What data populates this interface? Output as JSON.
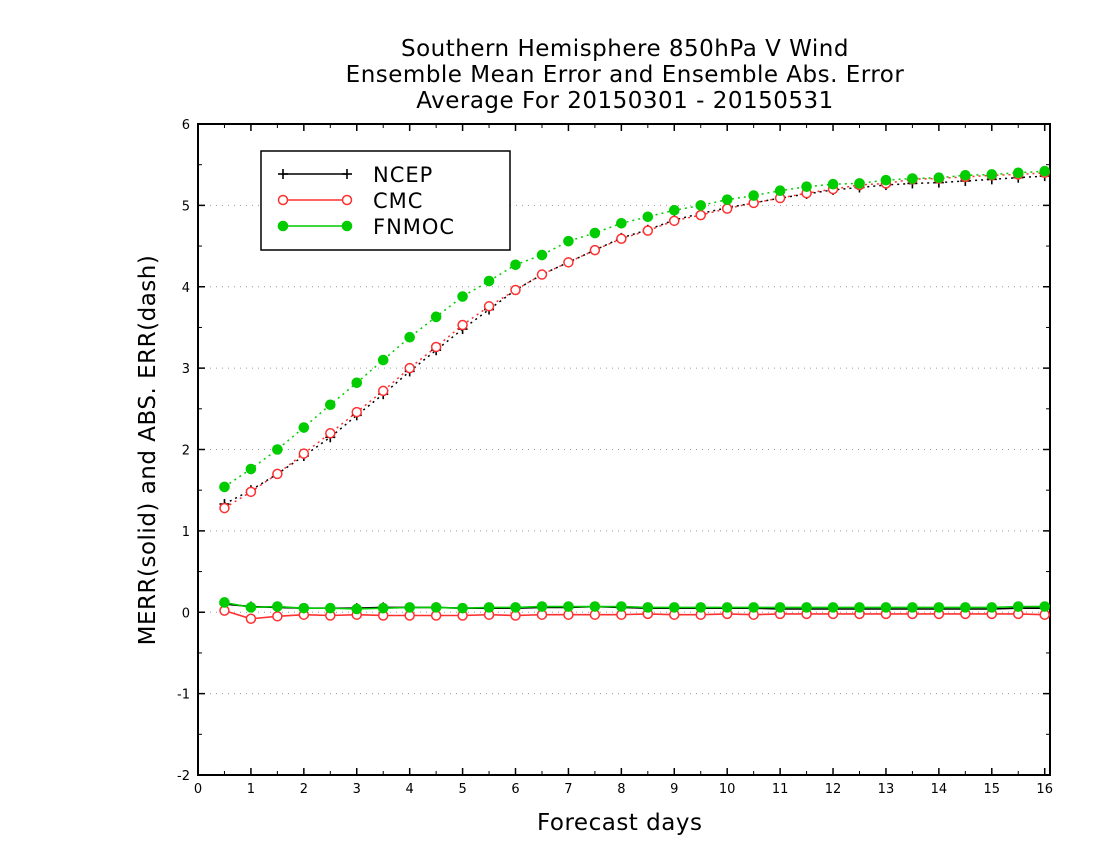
{
  "chart_data": {
    "type": "line",
    "title_lines": [
      "Southern Hemisphere 850hPa V Wind",
      "Ensemble Mean Error and Ensemble Abs. Error",
      "Average For 20150301 - 20150531"
    ],
    "xlabel": "Forecast days",
    "ylabel": "MERR(solid) and ABS. ERR(dash)",
    "xlim": [
      0,
      16.1
    ],
    "ylim": [
      -2,
      6
    ],
    "x_ticks": [
      0,
      1,
      2,
      3,
      4,
      5,
      6,
      7,
      8,
      9,
      10,
      11,
      12,
      13,
      14,
      15,
      16
    ],
    "y_ticks": [
      -2,
      -1,
      0,
      1,
      2,
      3,
      4,
      5,
      6
    ],
    "y_tick_labels": [
      "-2",
      "-1",
      "0",
      "1",
      "2",
      "3",
      "4",
      "5",
      "6"
    ],
    "grid": "horizontal dotted",
    "legend_position": "top-left",
    "x": [
      0.5,
      1,
      1.5,
      2,
      2.5,
      3,
      3.5,
      4,
      4.5,
      5,
      5.5,
      6,
      6.5,
      7,
      7.5,
      8,
      8.5,
      9,
      9.5,
      10,
      10.5,
      11,
      11.5,
      12,
      12.5,
      13,
      13.5,
      14,
      14.5,
      15,
      15.5,
      16
    ],
    "series": [
      {
        "name": "NCEP",
        "color": "#000000",
        "marker": "plus",
        "merr": [
          0.1,
          0.07,
          0.06,
          0.05,
          0.05,
          0.05,
          0.06,
          0.06,
          0.06,
          0.05,
          0.05,
          0.05,
          0.06,
          0.06,
          0.07,
          0.06,
          0.05,
          0.05,
          0.05,
          0.05,
          0.05,
          0.04,
          0.04,
          0.04,
          0.04,
          0.04,
          0.04,
          0.04,
          0.04,
          0.04,
          0.05,
          0.05
        ],
        "abs_err": [
          1.33,
          1.5,
          1.7,
          1.92,
          2.15,
          2.42,
          2.68,
          2.96,
          3.22,
          3.48,
          3.72,
          3.96,
          4.15,
          4.3,
          4.45,
          4.6,
          4.7,
          4.82,
          4.9,
          4.97,
          5.03,
          5.09,
          5.14,
          5.19,
          5.22,
          5.25,
          5.27,
          5.28,
          5.3,
          5.32,
          5.34,
          5.36
        ]
      },
      {
        "name": "CMC",
        "color": "#ff3030",
        "marker": "open-circle",
        "merr": [
          0.02,
          -0.08,
          -0.05,
          -0.03,
          -0.04,
          -0.03,
          -0.04,
          -0.04,
          -0.04,
          -0.04,
          -0.03,
          -0.04,
          -0.03,
          -0.03,
          -0.03,
          -0.03,
          -0.02,
          -0.03,
          -0.03,
          -0.02,
          -0.03,
          -0.02,
          -0.02,
          -0.02,
          -0.02,
          -0.02,
          -0.02,
          -0.02,
          -0.02,
          -0.02,
          -0.02,
          -0.03
        ],
        "abs_err": [
          1.28,
          1.48,
          1.7,
          1.95,
          2.2,
          2.46,
          2.72,
          3.0,
          3.26,
          3.53,
          3.76,
          3.96,
          4.15,
          4.3,
          4.45,
          4.59,
          4.69,
          4.81,
          4.88,
          4.96,
          5.03,
          5.09,
          5.15,
          5.2,
          5.25,
          5.27,
          5.32,
          5.33,
          5.35,
          5.37,
          5.38,
          5.4
        ]
      },
      {
        "name": "FNMOC",
        "color": "#00cc00",
        "marker": "filled-circle",
        "merr": [
          0.12,
          0.06,
          0.07,
          0.05,
          0.05,
          0.04,
          0.05,
          0.06,
          0.06,
          0.05,
          0.06,
          0.06,
          0.07,
          0.07,
          0.07,
          0.07,
          0.06,
          0.06,
          0.06,
          0.06,
          0.06,
          0.06,
          0.06,
          0.06,
          0.06,
          0.06,
          0.06,
          0.06,
          0.06,
          0.06,
          0.07,
          0.07
        ],
        "abs_err": [
          1.54,
          1.76,
          2.0,
          2.27,
          2.55,
          2.82,
          3.1,
          3.38,
          3.63,
          3.88,
          4.07,
          4.27,
          4.39,
          4.56,
          4.66,
          4.78,
          4.86,
          4.94,
          5.0,
          5.07,
          5.12,
          5.18,
          5.23,
          5.26,
          5.27,
          5.31,
          5.33,
          5.34,
          5.37,
          5.38,
          5.4,
          5.42
        ]
      }
    ]
  }
}
